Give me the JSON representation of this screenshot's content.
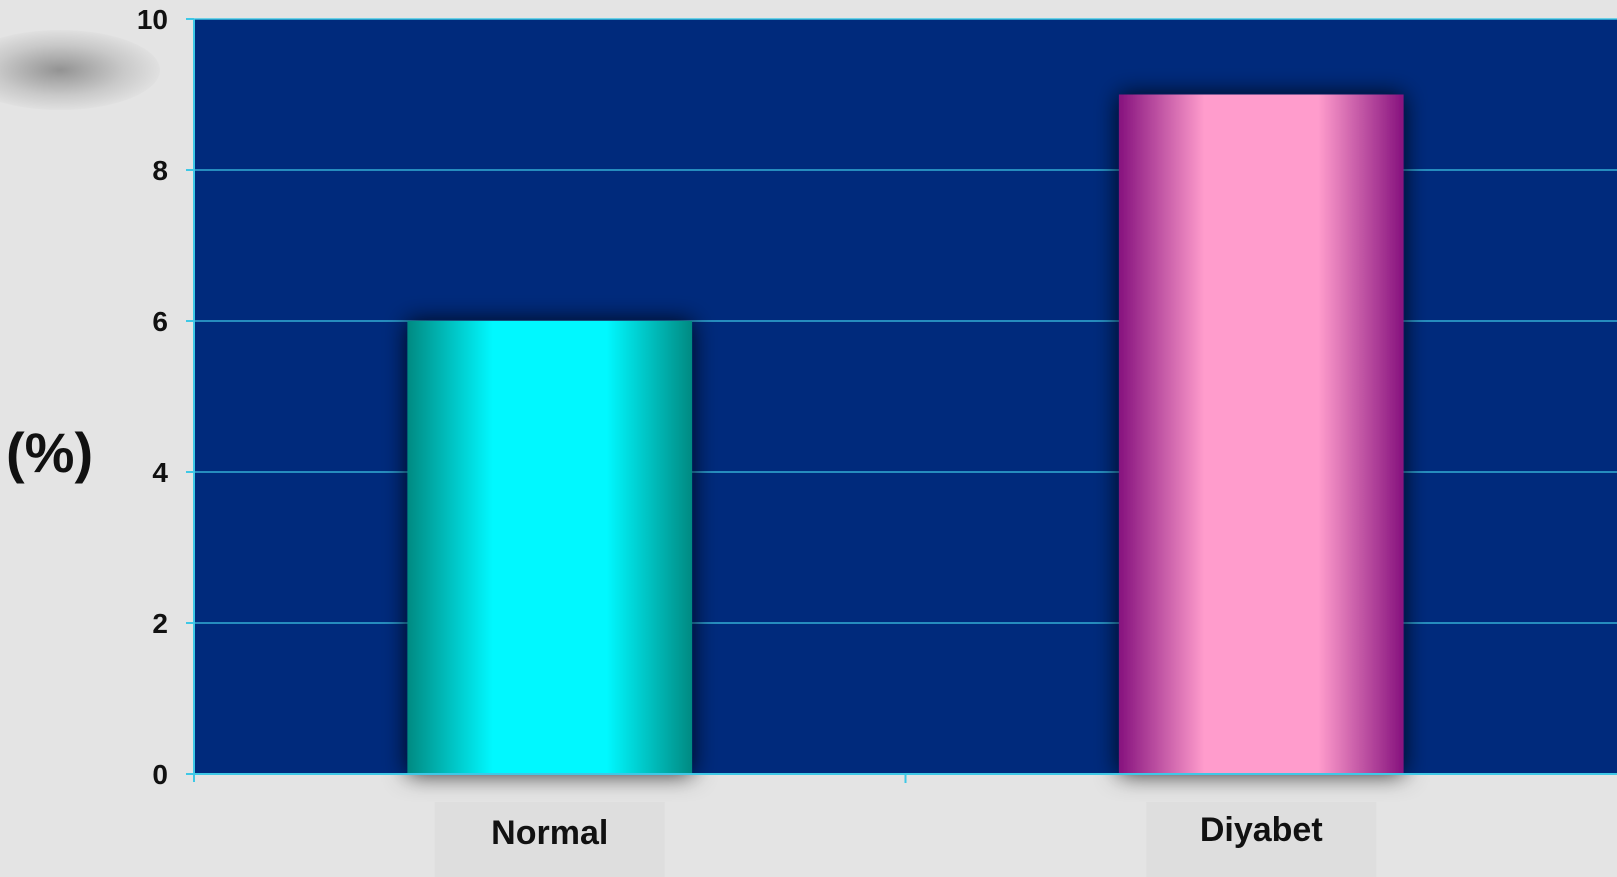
{
  "chart_data": {
    "type": "bar",
    "title": "",
    "xlabel": "",
    "ylabel": "(%)",
    "ylim": [
      0,
      10
    ],
    "yticks": [
      0,
      2,
      4,
      6,
      8,
      10
    ],
    "categories": [
      "Normal",
      "Diyabet"
    ],
    "values": [
      6,
      9
    ],
    "grid": true,
    "colors": {
      "plot_background": "#002a7c",
      "gridline": "#3ec8e6",
      "bar_normal_center": "#00f8ff",
      "bar_normal_edge": "#008a82",
      "bar_diyabet_center": "#ff9ccc",
      "bar_diyabet_edge": "#86127e"
    }
  }
}
